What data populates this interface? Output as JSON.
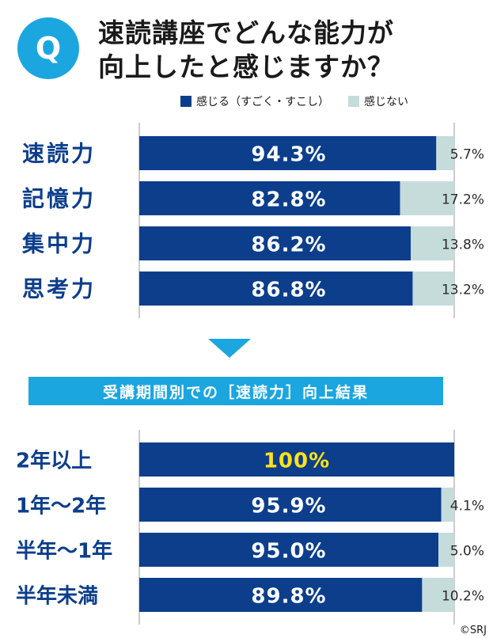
{
  "question": {
    "icon_label": "Q",
    "title_line1": "速読講座でどんな能力が",
    "title_line2": "向上したと感じますか？"
  },
  "legend": {
    "yes_label": "感じる（すごく・すこし）",
    "no_label": "感じない"
  },
  "banner_text": "受講期間別での［速読力］向上結果",
  "credit": "©SRJ",
  "colors": {
    "felt": "#0c3e8c",
    "not_felt": "#c5dcdb",
    "accent": "#1ba6e0",
    "highlight": "#ffe21a"
  },
  "chart_data": [
    {
      "type": "bar",
      "orientation": "horizontal",
      "stacked": true,
      "categories": [
        "速読力",
        "記憶力",
        "集中力",
        "思考力"
      ],
      "series": [
        {
          "name": "感じる（すごく・すこし）",
          "values": [
            94.3,
            82.8,
            86.2,
            86.8
          ]
        },
        {
          "name": "感じない",
          "values": [
            5.7,
            17.2,
            13.8,
            13.2
          ]
        }
      ],
      "labels_felt": [
        "94.3%",
        "82.8%",
        "86.2%",
        "86.8%"
      ],
      "labels_not_felt": [
        "5.7%",
        "17.2%",
        "13.8%",
        "13.2%"
      ],
      "xlim": [
        0,
        100
      ]
    },
    {
      "type": "bar",
      "orientation": "horizontal",
      "stacked": true,
      "categories": [
        "2年以上",
        "1年〜2年",
        "半年〜1年",
        "半年未満"
      ],
      "series": [
        {
          "name": "感じる（すごく・すこし）",
          "values": [
            100,
            95.9,
            95.0,
            89.8
          ]
        },
        {
          "name": "感じない",
          "values": [
            0,
            4.1,
            5.0,
            10.2
          ]
        }
      ],
      "labels_felt": [
        "100%",
        "95.9%",
        "95.0%",
        "89.8%"
      ],
      "labels_not_felt": [
        "",
        "4.1%",
        "5.0%",
        "10.2%"
      ],
      "highlight_index": 0,
      "xlim": [
        0,
        100
      ]
    }
  ]
}
